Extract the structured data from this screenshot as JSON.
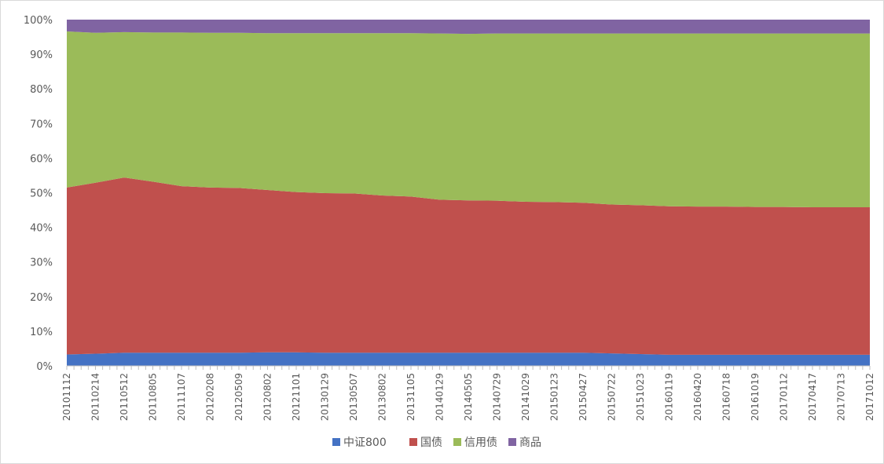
{
  "chart_data": {
    "type": "area",
    "stacked": "percent",
    "title": "",
    "xlabel": "",
    "ylabel": "",
    "ylim": [
      0,
      100
    ],
    "yticks": [
      "0%",
      "10%",
      "20%",
      "30%",
      "40%",
      "50%",
      "60%",
      "70%",
      "80%",
      "90%",
      "100%"
    ],
    "x_tick_labels": [
      "20101112",
      "20110214",
      "20110512",
      "20110805",
      "20111107",
      "20120208",
      "20120509",
      "20120802",
      "20121101",
      "20130129",
      "20130507",
      "20130802",
      "20131105",
      "20140129",
      "20140505",
      "20140729",
      "20141029",
      "20150123",
      "20150427",
      "20150722",
      "20151023",
      "20160119",
      "20160420",
      "20160718",
      "20161019",
      "20170112",
      "20170417",
      "20170713",
      "20171012"
    ],
    "legend_position": "bottom",
    "colors": {
      "中证800": "#4472c4",
      "国债": "#c0504d",
      "信用债": "#9bbb59",
      "商品": "#8064a2"
    },
    "series": [
      {
        "name": "中证800",
        "values": [
          3.3,
          3.5,
          3.8,
          3.8,
          3.8,
          3.8,
          3.8,
          3.9,
          3.9,
          3.8,
          3.8,
          3.8,
          3.8,
          3.8,
          3.8,
          3.8,
          3.8,
          3.8,
          3.8,
          3.6,
          3.4,
          3.2,
          3.2,
          3.2,
          3.2,
          3.2,
          3.2,
          3.2,
          3.2
        ]
      },
      {
        "name": "国债",
        "values": [
          48.2,
          49.4,
          50.6,
          49.4,
          48.1,
          47.7,
          47.6,
          46.9,
          46.3,
          46.1,
          46.0,
          45.4,
          45.1,
          44.2,
          44.0,
          43.9,
          43.6,
          43.5,
          43.3,
          43.0,
          43.0,
          42.9,
          42.8,
          42.8,
          42.7,
          42.7,
          42.6,
          42.6,
          42.6
        ]
      },
      {
        "name": "信用债",
        "values": [
          45.1,
          43.3,
          42.0,
          43.1,
          44.4,
          44.7,
          44.8,
          45.3,
          45.9,
          46.2,
          46.3,
          46.9,
          47.2,
          48.0,
          48.1,
          48.3,
          48.6,
          48.7,
          48.9,
          49.4,
          49.6,
          49.9,
          50.0,
          50.0,
          50.1,
          50.1,
          50.2,
          50.2,
          50.2
        ]
      },
      {
        "name": "商品",
        "values": [
          3.4,
          3.8,
          3.6,
          3.7,
          3.7,
          3.8,
          3.8,
          3.9,
          3.9,
          3.9,
          3.9,
          3.9,
          3.9,
          4.0,
          4.1,
          4.0,
          4.0,
          4.0,
          4.0,
          4.0,
          4.0,
          4.0,
          4.0,
          4.0,
          4.0,
          4.0,
          4.0,
          4.0,
          4.0
        ]
      }
    ]
  }
}
